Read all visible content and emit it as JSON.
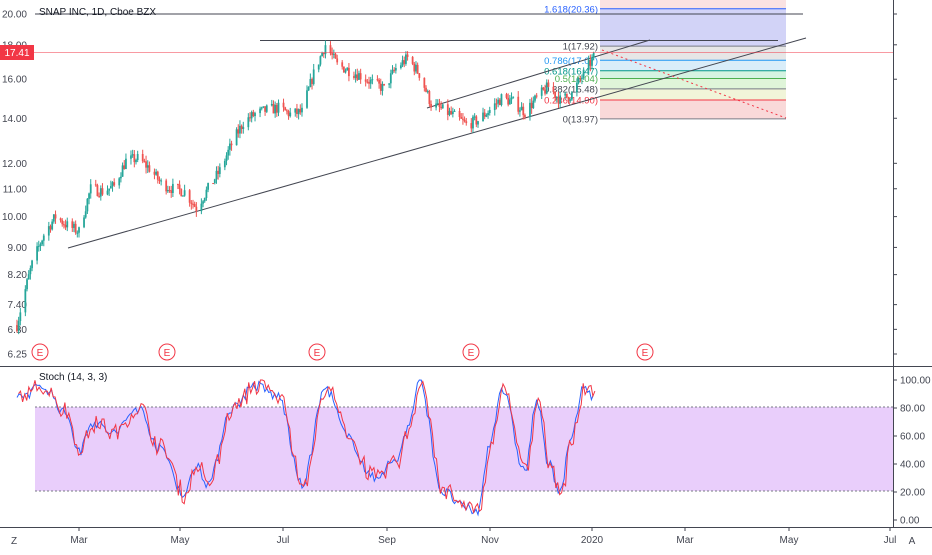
{
  "header": {
    "symbol_title": "SNAP INC, 1D, Cboe BZX"
  },
  "price": {
    "last_price": "17.41",
    "last_color": "#f23645",
    "y_ticks": [
      "20.00",
      "18.00",
      "16.00",
      "14.00",
      "12.00",
      "11.00",
      "10.00",
      "9.00",
      "8.20",
      "7.40",
      "6.80",
      "6.25"
    ]
  },
  "earnings_markers": [
    "E",
    "E",
    "E",
    "E",
    "E"
  ],
  "fib": {
    "levels": [
      {
        "label": "1.618(20.36)",
        "price": 20.36,
        "fill": "#c7c8f5",
        "line": "#2962ff"
      },
      {
        "label": "1(17.92)",
        "price": 17.92,
        "fill": "#e0e0e0",
        "line": "#787b86"
      },
      {
        "label": "0.786(17.07)",
        "price": 17.07,
        "fill": "#cfe8f8",
        "line": "#2196f3"
      },
      {
        "label": "0.618(16.47)",
        "price": 16.47,
        "fill": "#c9f0d9",
        "line": "#009688"
      },
      {
        "label": "0.5(16.04)",
        "price": 16.04,
        "fill": "#d7f3cf",
        "line": "#4caf50"
      },
      {
        "label": "0.382(15.48)",
        "price": 15.48,
        "fill": "#eef3cf",
        "line": "#787b86"
      },
      {
        "label": "0.236(14.90)",
        "price": 14.9,
        "fill": "#f7cfcf",
        "line": "#f23645"
      },
      {
        "label": "0(13.97)",
        "price": 13.97,
        "fill": "",
        "line": "#787b86"
      }
    ]
  },
  "oscillator": {
    "title": "Stoch (14, 3, 3)",
    "y_ticks": [
      "100.00",
      "80.00",
      "60.00",
      "40.00",
      "20.00",
      "0.00"
    ],
    "band_fill": "#e1bdfa",
    "k_color": "#2962ff",
    "d_color": "#f23645"
  },
  "x_axis": {
    "ticks": [
      "Mar",
      "May",
      "Jul",
      "Sep",
      "Nov",
      "2020",
      "Mar",
      "May",
      "Jul"
    ]
  },
  "corner_buttons": {
    "left": "Z",
    "right": "A"
  },
  "chart_data": {
    "type": "candlestick",
    "price_series_approx": [
      [
        "2019-01-23",
        6.9
      ],
      [
        "2019-02-01",
        8.5
      ],
      [
        "2019-02-08",
        9.4
      ],
      [
        "2019-02-15",
        10.0
      ],
      [
        "2019-02-22",
        9.7
      ],
      [
        "2019-03-01",
        9.5
      ],
      [
        "2019-03-08",
        11.0
      ],
      [
        "2019-03-15",
        10.9
      ],
      [
        "2019-03-22",
        11.1
      ],
      [
        "2019-03-29",
        12.1
      ],
      [
        "2019-04-05",
        12.2
      ],
      [
        "2019-04-12",
        11.8
      ],
      [
        "2019-04-19",
        11.2
      ],
      [
        "2019-04-26",
        11.0
      ],
      [
        "2019-05-03",
        10.9
      ],
      [
        "2019-05-10",
        10.3
      ],
      [
        "2019-05-17",
        11.0
      ],
      [
        "2019-05-24",
        11.7
      ],
      [
        "2019-05-31",
        12.8
      ],
      [
        "2019-06-07",
        13.8
      ],
      [
        "2019-06-14",
        14.2
      ],
      [
        "2019-06-21",
        14.4
      ],
      [
        "2019-06-28",
        14.5
      ],
      [
        "2019-07-05",
        14.2
      ],
      [
        "2019-07-12",
        14.3
      ],
      [
        "2019-07-19",
        16.3
      ],
      [
        "2019-07-26",
        18.0
      ],
      [
        "2019-08-02",
        16.8
      ],
      [
        "2019-08-09",
        16.5
      ],
      [
        "2019-08-16",
        16.2
      ],
      [
        "2019-08-23",
        15.8
      ],
      [
        "2019-08-30",
        15.5
      ],
      [
        "2019-09-06",
        16.6
      ],
      [
        "2019-09-13",
        17.2
      ],
      [
        "2019-09-20",
        16.3
      ],
      [
        "2019-09-27",
        14.7
      ],
      [
        "2019-10-04",
        14.4
      ],
      [
        "2019-10-11",
        14.1
      ],
      [
        "2019-10-18",
        13.7
      ],
      [
        "2019-10-25",
        13.9
      ],
      [
        "2019-11-01",
        14.4
      ],
      [
        "2019-11-08",
        15.0
      ],
      [
        "2019-11-15",
        14.8
      ],
      [
        "2019-11-22",
        14.3
      ],
      [
        "2019-11-29",
        15.0
      ],
      [
        "2019-12-06",
        15.6
      ],
      [
        "2019-12-13",
        14.9
      ],
      [
        "2019-12-20",
        15.2
      ],
      [
        "2019-12-27",
        16.3
      ],
      [
        "2020-01-03",
        17.4
      ]
    ],
    "last_price": 17.41,
    "y_scale": "log",
    "ylim": [
      6.25,
      20.5
    ],
    "stoch_k_approx": [
      [
        "2019-01-23",
        88
      ],
      [
        "2019-02-08",
        95
      ],
      [
        "2019-02-22",
        75
      ],
      [
        "2019-03-01",
        48
      ],
      [
        "2019-03-08",
        70
      ],
      [
        "2019-03-22",
        62
      ],
      [
        "2019-04-05",
        80
      ],
      [
        "2019-04-19",
        50
      ],
      [
        "2019-05-03",
        18
      ],
      [
        "2019-05-10",
        40
      ],
      [
        "2019-05-17",
        26
      ],
      [
        "2019-05-31",
        80
      ],
      [
        "2019-06-14",
        96
      ],
      [
        "2019-06-28",
        88
      ],
      [
        "2019-07-12",
        25
      ],
      [
        "2019-07-26",
        94
      ],
      [
        "2019-08-09",
        58
      ],
      [
        "2019-08-23",
        30
      ],
      [
        "2019-09-06",
        42
      ],
      [
        "2019-09-13",
        65
      ],
      [
        "2019-09-20",
        98
      ],
      [
        "2019-10-04",
        20
      ],
      [
        "2019-10-18",
        8
      ],
      [
        "2019-10-25",
        6
      ],
      [
        "2019-11-01",
        55
      ],
      [
        "2019-11-08",
        94
      ],
      [
        "2019-11-22",
        35
      ],
      [
        "2019-11-29",
        85
      ],
      [
        "2019-12-06",
        40
      ],
      [
        "2019-12-13",
        22
      ],
      [
        "2019-12-20",
        60
      ],
      [
        "2019-12-27",
        95
      ],
      [
        "2020-01-03",
        88
      ]
    ],
    "stoch_ylim": [
      0,
      100
    ],
    "stoch_band": [
      20,
      80
    ]
  }
}
